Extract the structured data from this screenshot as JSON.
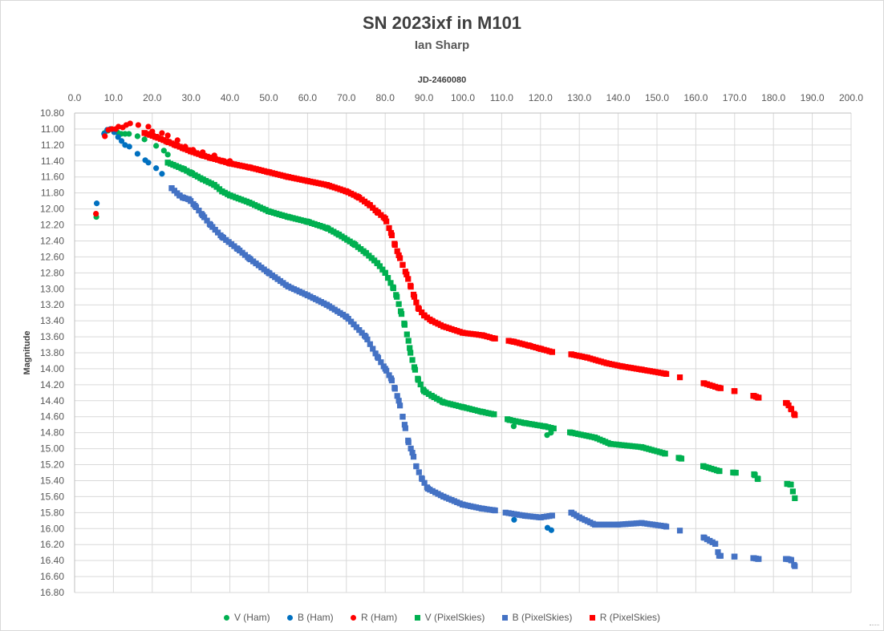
{
  "chart_data": {
    "type": "scatter",
    "title": "SN 2023ixf in M101",
    "subtitle": "Ian Sharp",
    "xlabel": "JD-2460080",
    "ylabel": "Magnitude",
    "xlim": [
      0,
      200
    ],
    "ylim": [
      16.8,
      10.8
    ],
    "y_reversed": true,
    "x_axis_position": "top",
    "grid": "major horizontal and vertical",
    "legend_position": "bottom",
    "x_ticks": [
      "0.0",
      "10.0",
      "20.0",
      "30.0",
      "40.0",
      "50.0",
      "60.0",
      "70.0",
      "80.0",
      "90.0",
      "100.0",
      "110.0",
      "120.0",
      "130.0",
      "140.0",
      "150.0",
      "160.0",
      "170.0",
      "180.0",
      "190.0",
      "200.0"
    ],
    "y_ticks": [
      "10.80",
      "11.00",
      "11.20",
      "11.40",
      "11.60",
      "11.80",
      "12.00",
      "12.20",
      "12.40",
      "12.60",
      "12.80",
      "13.00",
      "13.20",
      "13.40",
      "13.60",
      "13.80",
      "14.00",
      "14.20",
      "14.40",
      "14.60",
      "14.80",
      "15.00",
      "15.20",
      "15.40",
      "15.60",
      "15.80",
      "16.00",
      "16.20",
      "16.40",
      "16.60",
      "16.80"
    ],
    "series": [
      {
        "name": "V (Ham)",
        "marker": "circle",
        "color": "#00b050",
        "x": [
          5.6,
          7.7,
          8.6,
          9.3,
          10.1,
          11.0,
          12.0,
          13.0,
          14.0,
          16.2,
          18.0,
          21.0,
          23.0,
          24.0,
          113.1,
          121.7,
          122.7
        ],
        "y": [
          12.1,
          11.05,
          11.02,
          11.0,
          11.02,
          11.04,
          11.06,
          11.06,
          11.06,
          11.09,
          11.13,
          11.21,
          11.27,
          11.32,
          14.72,
          14.83,
          14.8
        ]
      },
      {
        "name": "B (Ham)",
        "marker": "circle",
        "color": "#0070c0",
        "x": [
          5.7,
          7.6,
          8.4,
          9.2,
          10.2,
          11.2,
          12.1,
          13.0,
          14.1,
          16.2,
          18.2,
          19.0,
          21.0,
          22.5,
          113.2,
          121.8,
          122.8
        ],
        "y": [
          11.93,
          11.06,
          11.01,
          11.0,
          11.04,
          11.1,
          11.15,
          11.2,
          11.22,
          11.31,
          11.39,
          11.42,
          11.49,
          11.56,
          15.89,
          15.99,
          16.02
        ]
      },
      {
        "name": "R (Ham)",
        "marker": "circle",
        "color": "#ff0000",
        "x": [
          5.5,
          7.8,
          8.7,
          9.6,
          10.6,
          11.3,
          12.4,
          13.3,
          14.3,
          16.4,
          19.0,
          20.0,
          22.5,
          24.0,
          26.5,
          28.5,
          30.5,
          33.0,
          36.0,
          40.0
        ],
        "y": [
          12.06,
          11.09,
          11.01,
          11.0,
          11.0,
          10.97,
          10.98,
          10.95,
          10.93,
          10.95,
          10.97,
          11.03,
          11.05,
          11.08,
          11.14,
          11.22,
          11.26,
          11.29,
          11.33,
          11.4
        ]
      },
      {
        "name": "V (PixelSkies)",
        "marker": "square",
        "color": "#00b050",
        "x": [],
        "y": []
      },
      {
        "name": "B (PixelSkies)",
        "marker": "square",
        "color": "#4472c4",
        "x": [],
        "y": []
      },
      {
        "name": "R (PixelSkies)",
        "marker": "square",
        "color": "#ff0000",
        "x": [],
        "y": []
      }
    ],
    "pixelskies_curves": {
      "V": {
        "x": [
          24,
          28,
          30,
          33,
          36,
          38,
          40,
          45,
          50,
          55,
          60,
          65,
          68,
          72,
          75,
          78,
          80,
          82,
          83,
          84,
          85,
          86,
          86.5,
          87.5,
          88.5,
          90,
          92,
          95,
          100,
          105,
          108,
          112,
          116,
          121,
          128,
          134,
          138,
          146,
          152,
          156,
          162,
          166,
          170,
          175,
          176,
          183.5,
          184.5,
          185.5
        ],
        "y": [
          11.42,
          11.5,
          11.55,
          11.63,
          11.7,
          11.78,
          11.83,
          11.92,
          12.03,
          12.1,
          12.16,
          12.24,
          12.32,
          12.44,
          12.55,
          12.68,
          12.8,
          12.98,
          13.1,
          13.28,
          13.45,
          13.65,
          13.8,
          13.98,
          14.14,
          14.28,
          14.34,
          14.42,
          14.48,
          14.54,
          14.57,
          14.64,
          14.68,
          14.72,
          14.8,
          14.86,
          14.94,
          14.98,
          15.06,
          15.12,
          15.22,
          15.28,
          15.3,
          15.32,
          15.38,
          15.44,
          15.45,
          15.62
        ]
      },
      "B": {
        "x": [
          25,
          27,
          28,
          29.5,
          31,
          33,
          35,
          38,
          42,
          45,
          50,
          55,
          60,
          65,
          70,
          75,
          78,
          80,
          81.5,
          82.5,
          83.5,
          84.5,
          85,
          86,
          87,
          88,
          89.5,
          91,
          95,
          100,
          105,
          108,
          111,
          116,
          120,
          128,
          130,
          134,
          140,
          146,
          152,
          162,
          165,
          166,
          170,
          175,
          176,
          183.5,
          184.5,
          185.5
        ],
        "y": [
          11.74,
          11.83,
          11.86,
          11.88,
          11.96,
          12.08,
          12.2,
          12.35,
          12.5,
          12.62,
          12.8,
          12.97,
          13.08,
          13.2,
          13.35,
          13.6,
          13.85,
          14.0,
          14.12,
          14.25,
          14.4,
          14.6,
          14.7,
          14.92,
          15.05,
          15.22,
          15.38,
          15.5,
          15.6,
          15.7,
          15.75,
          15.77,
          15.8,
          15.84,
          15.86,
          15.8,
          15.86,
          15.95,
          15.95,
          15.93,
          15.97,
          16.11,
          16.19,
          16.34,
          16.35,
          16.37,
          16.38,
          16.38,
          16.39,
          16.47
        ]
      },
      "R": {
        "x": [
          18,
          21,
          24,
          26,
          28,
          30,
          33,
          35,
          38,
          40,
          45,
          50,
          55,
          60,
          65,
          70,
          73,
          76,
          78,
          80,
          81.5,
          82.5,
          83.5,
          84.5,
          85.5,
          86.5,
          87.5,
          88.5,
          90,
          92,
          95,
          100,
          105,
          108,
          113,
          117,
          120,
          123,
          128,
          132,
          137,
          141,
          146,
          152,
          162,
          166,
          170,
          175,
          176,
          183.5,
          184.5,
          185.5
        ],
        "y": [
          11.05,
          11.1,
          11.16,
          11.2,
          11.24,
          11.28,
          11.33,
          11.36,
          11.4,
          11.43,
          11.48,
          11.54,
          11.6,
          11.65,
          11.7,
          11.78,
          11.85,
          11.95,
          12.04,
          12.12,
          12.3,
          12.45,
          12.58,
          12.7,
          12.82,
          12.96,
          13.1,
          13.24,
          13.33,
          13.4,
          13.47,
          13.55,
          13.58,
          13.62,
          13.66,
          13.71,
          13.75,
          13.79,
          13.82,
          13.86,
          13.93,
          13.97,
          14.01,
          14.06,
          14.18,
          14.24,
          14.28,
          14.34,
          14.36,
          14.43,
          14.5,
          14.58
        ]
      }
    }
  },
  "legend": [
    {
      "label": "V (Ham)",
      "shape": "circle",
      "color": "#00b050"
    },
    {
      "label": "B (Ham)",
      "shape": "circle",
      "color": "#0070c0"
    },
    {
      "label": "R (Ham)",
      "shape": "circle",
      "color": "#ff0000"
    },
    {
      "label": "V (PixelSkies)",
      "shape": "square",
      "color": "#00b050"
    },
    {
      "label": "B (PixelSkies)",
      "shape": "square",
      "color": "#4472c4"
    },
    {
      "label": "R (PixelSkies)",
      "shape": "square",
      "color": "#ff0000"
    }
  ]
}
